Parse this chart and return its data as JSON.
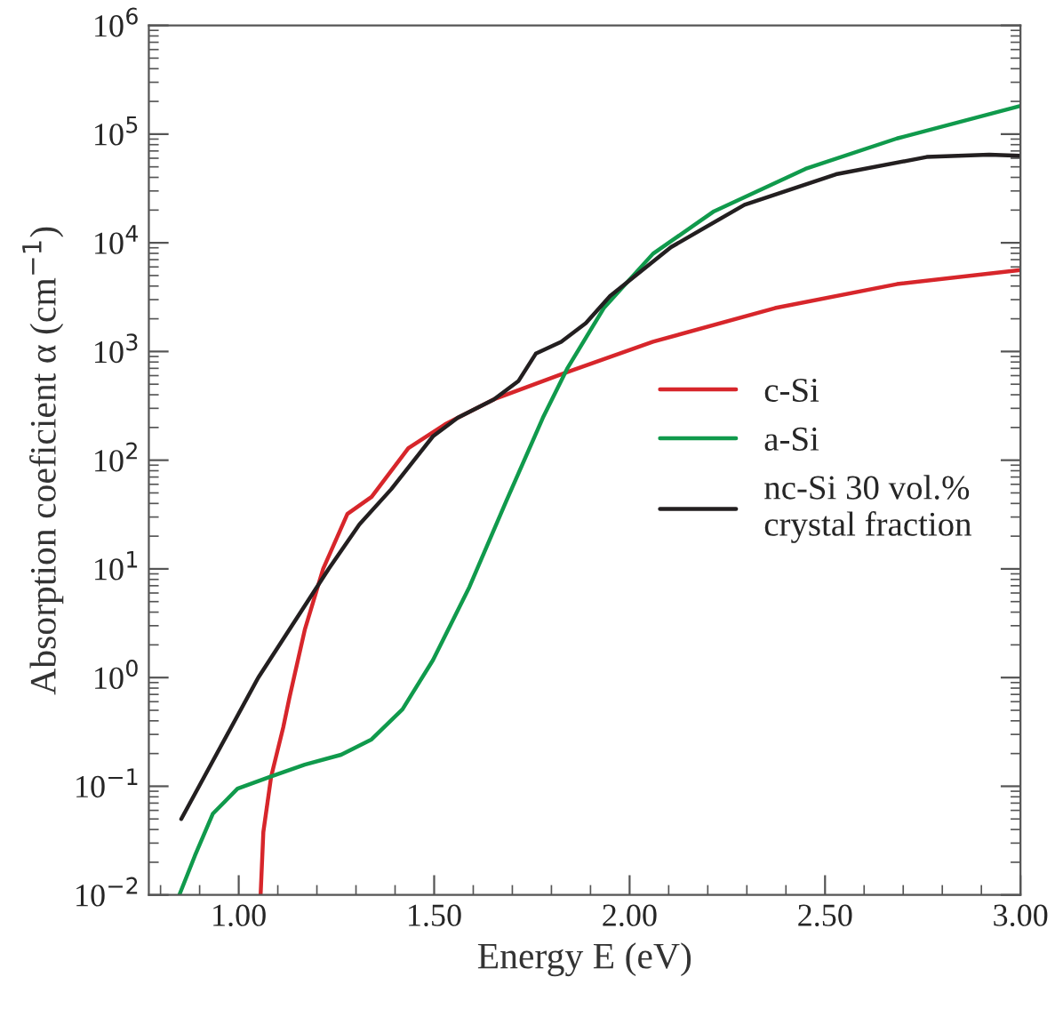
{
  "chart_data": {
    "type": "line",
    "xlabel": "Energy E (eV)",
    "ylabel": "Absorption coeficient α (cm$^{−1}$)",
    "log": "y",
    "grid": false,
    "legend": "right",
    "marker": "none",
    "line_style": "solid",
    "xlim": [
      0.77,
      3.0
    ],
    "xticks": [
      {
        "value": 1.0,
        "label": "1.00"
      },
      {
        "value": 1.5,
        "label": "1.50"
      },
      {
        "value": 2.0,
        "label": "2.00"
      },
      {
        "value": 2.5,
        "label": "2.50"
      },
      {
        "value": 3.0,
        "label": "3.00"
      }
    ],
    "ylim": [
      0.01,
      1000000
    ],
    "yticks": [
      {
        "value": 0.01,
        "label": "10$^{−2}$"
      },
      {
        "value": 0.1,
        "label": "10$^{−1}$"
      },
      {
        "value": 1,
        "label": "10$^{0}$"
      },
      {
        "value": 10,
        "label": "10$^{1}$"
      },
      {
        "value": 100,
        "label": "10$^{2}$"
      },
      {
        "value": 1000,
        "label": "10$^{3}$"
      },
      {
        "value": 10000,
        "label": "10$^{4}$"
      },
      {
        "value": 100000,
        "label": "10$^{5}$"
      },
      {
        "value": 1000000,
        "label": "10$^{6}$"
      }
    ],
    "series": [
      {
        "name": "c-Si",
        "color": "#d7262b",
        "x": [
          1.056,
          1.063,
          1.083,
          1.114,
          1.13,
          1.169,
          1.216,
          1.278,
          1.34,
          1.434,
          1.528,
          1.653,
          1.84,
          2.06,
          2.372,
          2.684,
          3.0
        ],
        "values": [
          0.01,
          0.038,
          0.123,
          0.35,
          0.66,
          2.75,
          10,
          32,
          46,
          129,
          214,
          363,
          645,
          1230,
          2510,
          4170,
          5620
        ]
      },
      {
        "name": "a-Si",
        "color": "#109a4c",
        "x": [
          0.848,
          0.888,
          0.934,
          0.997,
          1.083,
          1.169,
          1.262,
          1.34,
          1.419,
          1.497,
          1.59,
          1.684,
          1.778,
          1.84,
          1.934,
          2.06,
          2.216,
          2.45,
          2.684,
          3.0
        ],
        "values": [
          0.01,
          0.023,
          0.056,
          0.095,
          0.123,
          0.158,
          0.195,
          0.27,
          0.51,
          1.45,
          6.8,
          41.6,
          245,
          692,
          2510,
          7940,
          19500,
          47900,
          91200,
          182000
        ]
      },
      {
        "name": "nc-Si 30 vol.%\ncrystal fraction",
        "color": "#231f20",
        "x": [
          0.853,
          1.05,
          1.23,
          1.309,
          1.39,
          1.497,
          1.56,
          1.653,
          1.716,
          1.76,
          1.825,
          1.888,
          1.95,
          2.106,
          2.294,
          2.528,
          2.76,
          2.92,
          3.0
        ],
        "values": [
          0.05,
          1,
          10,
          25.7,
          54,
          166,
          245,
          363,
          537,
          955,
          1230,
          1820,
          3236,
          9120,
          22400,
          42700,
          61600,
          64600,
          63100
        ]
      }
    ]
  }
}
